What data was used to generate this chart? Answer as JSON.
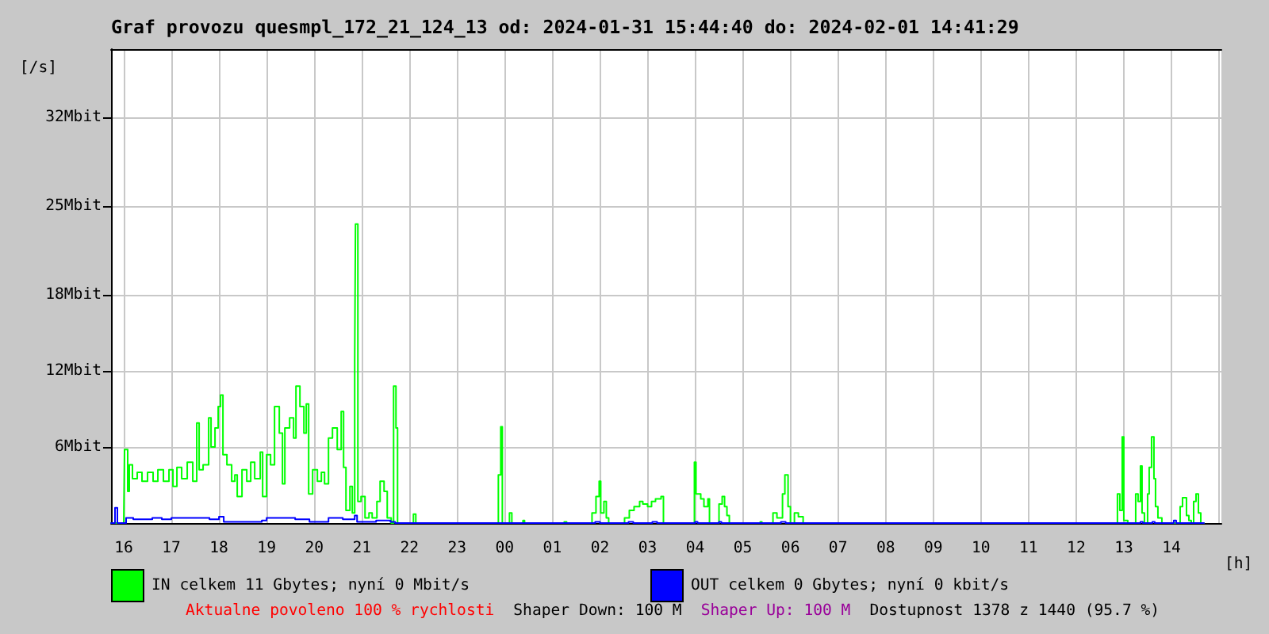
{
  "chart_data": {
    "type": "step",
    "title": "Graf provozu quesmpl_172_21_124_13 od: 2024-01-31 15:44:40 do: 2024-02-01 14:41:29",
    "ylabel": "[/s]",
    "xlabel": "[h]",
    "xlim": [
      "2024-01-31T15:44",
      "2024-02-01T15:03"
    ],
    "xticks": [
      {
        "value": "2024-01-31T16:00",
        "label": "16"
      },
      {
        "value": "2024-01-31T17:00",
        "label": "17"
      },
      {
        "value": "2024-01-31T18:00",
        "label": "18"
      },
      {
        "value": "2024-01-31T19:00",
        "label": "19"
      },
      {
        "value": "2024-01-31T20:00",
        "label": "20"
      },
      {
        "value": "2024-01-31T21:00",
        "label": "21"
      },
      {
        "value": "2024-01-31T22:00",
        "label": "22"
      },
      {
        "value": "2024-01-31T23:00",
        "label": "23"
      },
      {
        "value": "2024-02-01T00:00",
        "label": "00"
      },
      {
        "value": "2024-02-01T01:00",
        "label": "01"
      },
      {
        "value": "2024-02-01T02:00",
        "label": "02"
      },
      {
        "value": "2024-02-01T03:00",
        "label": "03"
      },
      {
        "value": "2024-02-01T04:00",
        "label": "04"
      },
      {
        "value": "2024-02-01T05:00",
        "label": "05"
      },
      {
        "value": "2024-02-01T06:00",
        "label": "06"
      },
      {
        "value": "2024-02-01T07:00",
        "label": "07"
      },
      {
        "value": "2024-02-01T08:00",
        "label": "08"
      },
      {
        "value": "2024-02-01T09:00",
        "label": "09"
      },
      {
        "value": "2024-02-01T10:00",
        "label": "10"
      },
      {
        "value": "2024-02-01T11:00",
        "label": "11"
      },
      {
        "value": "2024-02-01T12:00",
        "label": "12"
      },
      {
        "value": "2024-02-01T13:00",
        "label": "13"
      },
      {
        "value": "2024-02-01T14:00",
        "label": "14"
      },
      {
        "value": "2024-02-01T15:00",
        "label": null
      }
    ],
    "ylim": [
      0,
      37.4
    ],
    "yticks": [
      {
        "value": 6,
        "label": "6Mbit"
      },
      {
        "value": 12,
        "label": "12Mbit"
      },
      {
        "value": 18,
        "label": "18Mbit"
      },
      {
        "value": 25,
        "label": "25Mbit"
      },
      {
        "value": 32,
        "label": "32Mbit"
      }
    ],
    "grid": true,
    "legend": "bottom",
    "marker": "none",
    "line_style": "solid",
    "series": [
      {
        "name": "IN celkem 11 Gbytes; nyní 0 Mbit/s",
        "color": "#00ff00",
        "x": [
          "2024-01-31T15:44",
          "2024-01-31T16:00",
          "2024-01-31T16:01",
          "2024-01-31T16:05",
          "2024-01-31T16:07",
          "2024-01-31T16:11",
          "2024-01-31T16:17",
          "2024-01-31T16:23",
          "2024-01-31T16:30",
          "2024-01-31T16:37",
          "2024-01-31T16:43",
          "2024-01-31T16:50",
          "2024-01-31T16:57",
          "2024-01-31T17:02",
          "2024-01-31T17:07",
          "2024-01-31T17:13",
          "2024-01-31T17:20",
          "2024-01-31T17:27",
          "2024-01-31T17:32",
          "2024-01-31T17:35",
          "2024-01-31T17:40",
          "2024-01-31T17:47",
          "2024-01-31T17:50",
          "2024-01-31T17:55",
          "2024-01-31T17:59",
          "2024-01-31T18:02",
          "2024-01-31T18:05",
          "2024-01-31T18:10",
          "2024-01-31T18:16",
          "2024-01-31T18:20",
          "2024-01-31T18:23",
          "2024-01-31T18:29",
          "2024-01-31T18:35",
          "2024-01-31T18:40",
          "2024-01-31T18:45",
          "2024-01-31T18:52",
          "2024-01-31T18:55",
          "2024-01-31T19:00",
          "2024-01-31T19:05",
          "2024-01-31T19:10",
          "2024-01-31T19:16",
          "2024-01-31T19:20",
          "2024-01-31T19:23",
          "2024-01-31T19:29",
          "2024-01-31T19:34",
          "2024-01-31T19:37",
          "2024-01-31T19:42",
          "2024-01-31T19:47",
          "2024-01-31T19:50",
          "2024-01-31T19:53",
          "2024-01-31T19:58",
          "2024-01-31T20:04",
          "2024-01-31T20:09",
          "2024-01-31T20:13",
          "2024-01-31T20:18",
          "2024-01-31T20:23",
          "2024-01-31T20:29",
          "2024-01-31T20:34",
          "2024-01-31T20:37",
          "2024-01-31T20:40",
          "2024-01-31T20:45",
          "2024-01-31T20:48",
          "2024-01-31T20:51",
          "2024-01-31T20:52",
          "2024-01-31T20:55",
          "2024-01-31T20:59",
          "2024-01-31T21:04",
          "2024-01-31T21:09",
          "2024-01-31T21:13",
          "2024-01-31T21:19",
          "2024-01-31T21:23",
          "2024-01-31T21:28",
          "2024-01-31T21:32",
          "2024-01-31T21:37",
          "2024-01-31T21:40",
          "2024-01-31T21:43",
          "2024-01-31T21:45",
          "2024-01-31T22:05",
          "2024-01-31T22:08",
          "2024-01-31T23:52",
          "2024-01-31T23:55",
          "2024-01-31T23:57",
          "2024-02-01T00:06",
          "2024-02-01T00:09",
          "2024-02-01T00:23",
          "2024-02-01T00:25",
          "2024-02-01T01:15",
          "2024-02-01T01:18",
          "2024-02-01T01:50",
          "2024-02-01T01:55",
          "2024-02-01T01:59",
          "2024-02-01T02:01",
          "2024-02-01T02:05",
          "2024-02-01T02:08",
          "2024-02-01T02:11",
          "2024-02-01T02:31",
          "2024-02-01T02:37",
          "2024-02-01T02:43",
          "2024-02-01T02:50",
          "2024-02-01T02:54",
          "2024-02-01T03:00",
          "2024-02-01T03:05",
          "2024-02-01T03:10",
          "2024-02-01T03:17",
          "2024-02-01T03:20",
          "2024-02-01T03:59",
          "2024-02-01T04:01",
          "2024-02-01T04:07",
          "2024-02-01T04:11",
          "2024-02-01T04:16",
          "2024-02-01T04:18",
          "2024-02-01T04:30",
          "2024-02-01T04:34",
          "2024-02-01T04:37",
          "2024-02-01T04:40",
          "2024-02-01T04:43",
          "2024-02-01T05:22",
          "2024-02-01T05:24",
          "2024-02-01T05:38",
          "2024-02-01T05:43",
          "2024-02-01T05:50",
          "2024-02-01T05:53",
          "2024-02-01T05:57",
          "2024-02-01T06:00",
          "2024-02-01T06:05",
          "2024-02-01T06:10",
          "2024-02-01T06:16",
          "2024-02-01T12:52",
          "2024-02-01T12:55",
          "2024-02-01T12:58",
          "2024-02-01T13:00",
          "2024-02-01T13:05",
          "2024-02-01T13:15",
          "2024-02-01T13:18",
          "2024-02-01T13:21",
          "2024-02-01T13:23",
          "2024-02-01T13:26",
          "2024-02-01T13:30",
          "2024-02-01T13:32",
          "2024-02-01T13:35",
          "2024-02-01T13:38",
          "2024-02-01T13:40",
          "2024-02-01T13:43",
          "2024-02-01T13:48",
          "2024-02-01T14:11",
          "2024-02-01T14:14",
          "2024-02-01T14:19",
          "2024-02-01T14:22",
          "2024-02-01T14:25",
          "2024-02-01T14:28",
          "2024-02-01T14:31",
          "2024-02-01T14:34",
          "2024-02-01T14:37",
          "2024-02-01T14:41"
        ],
        "values": [
          0,
          0,
          5.8,
          2.5,
          4.6,
          3.5,
          4.0,
          3.3,
          4.0,
          3.3,
          4.2,
          3.3,
          4.2,
          2.9,
          4.4,
          3.5,
          4.8,
          3.3,
          7.9,
          4.2,
          4.6,
          8.3,
          6.0,
          7.5,
          9.2,
          10.1,
          5.4,
          4.6,
          3.3,
          3.8,
          2.1,
          4.2,
          3.3,
          4.8,
          3.5,
          5.6,
          2.1,
          5.4,
          4.6,
          9.2,
          7.1,
          3.1,
          7.5,
          8.3,
          6.7,
          10.8,
          9.2,
          7.1,
          9.4,
          2.3,
          4.2,
          3.3,
          4.0,
          3.1,
          6.7,
          7.5,
          5.8,
          8.8,
          4.4,
          1.0,
          2.9,
          0.8,
          12.9,
          23.6,
          1.7,
          2.1,
          0.4,
          0.8,
          0.4,
          1.7,
          3.3,
          2.5,
          0.4,
          0,
          10.8,
          7.5,
          0,
          0.7,
          0,
          3.8,
          7.6,
          0,
          0.8,
          0,
          0.2,
          0,
          0.1,
          0,
          0.8,
          2.1,
          3.3,
          0.8,
          1.7,
          0.4,
          0,
          0.4,
          1.0,
          1.3,
          1.7,
          1.5,
          1.3,
          1.7,
          1.9,
          2.1,
          0,
          4.8,
          2.3,
          1.9,
          1.3,
          1.9,
          0,
          1.5,
          2.1,
          1.3,
          0.6,
          0,
          0.1,
          0,
          0.8,
          0.4,
          2.3,
          3.8,
          1.3,
          0,
          0.8,
          0.5,
          0,
          2.3,
          1.0,
          6.8,
          0.2,
          0,
          2.3,
          1.7,
          4.5,
          0.8,
          0,
          2.3,
          4.4,
          6.8,
          3.5,
          1.3,
          0.4,
          0,
          1.3,
          2.0,
          0.6,
          0.2,
          0,
          1.7,
          2.3,
          0.8,
          0,
          0
        ]
      },
      {
        "name": "OUT celkem 0 Gbytes; nyní 0 kbit/s",
        "color": "#0000ff",
        "x": [
          "2024-01-31T15:44",
          "2024-01-31T15:49",
          "2024-01-31T15:52",
          "2024-01-31T16:03",
          "2024-01-31T16:12",
          "2024-01-31T16:24",
          "2024-01-31T16:36",
          "2024-01-31T16:48",
          "2024-01-31T17:00",
          "2024-01-31T17:12",
          "2024-01-31T17:24",
          "2024-01-31T17:36",
          "2024-01-31T17:48",
          "2024-01-31T18:00",
          "2024-01-31T18:06",
          "2024-01-31T18:30",
          "2024-01-31T18:54",
          "2024-01-31T19:00",
          "2024-01-31T19:12",
          "2024-01-31T19:24",
          "2024-01-31T19:36",
          "2024-01-31T19:54",
          "2024-01-31T20:18",
          "2024-01-31T20:36",
          "2024-01-31T20:51",
          "2024-01-31T20:54",
          "2024-01-31T21:18",
          "2024-01-31T21:36",
          "2024-01-31T21:42",
          "2024-02-01T01:54",
          "2024-02-01T02:00",
          "2024-02-01T02:36",
          "2024-02-01T02:42",
          "2024-02-01T03:06",
          "2024-02-01T03:12",
          "2024-02-01T04:00",
          "2024-02-01T04:03",
          "2024-02-01T04:30",
          "2024-02-01T04:33",
          "2024-02-01T05:48",
          "2024-02-01T05:54",
          "2024-02-01T13:21",
          "2024-02-01T13:24",
          "2024-02-01T13:36",
          "2024-02-01T13:39",
          "2024-02-01T14:03",
          "2024-02-01T14:06",
          "2024-02-01T14:41"
        ],
        "values": [
          0,
          1.2,
          0,
          0.4,
          0.3,
          0.3,
          0.4,
          0.3,
          0.4,
          0.4,
          0.4,
          0.4,
          0.3,
          0.5,
          0.1,
          0.1,
          0.2,
          0.4,
          0.4,
          0.4,
          0.3,
          0.1,
          0.4,
          0.3,
          0.6,
          0.1,
          0.2,
          0.1,
          0,
          0.1,
          0,
          0.1,
          0,
          0.1,
          0,
          0.1,
          0,
          0.1,
          0,
          0.1,
          0,
          0.1,
          0,
          0.1,
          0,
          0.2,
          0,
          0
        ]
      }
    ],
    "annotations": [
      "Aktualne povoleno 100 % rychlosti",
      "Shaper Down: 100 M",
      "Shaper Up: 100 M",
      "Dostupnost 1378 z 1440 (95.7 %)"
    ]
  }
}
